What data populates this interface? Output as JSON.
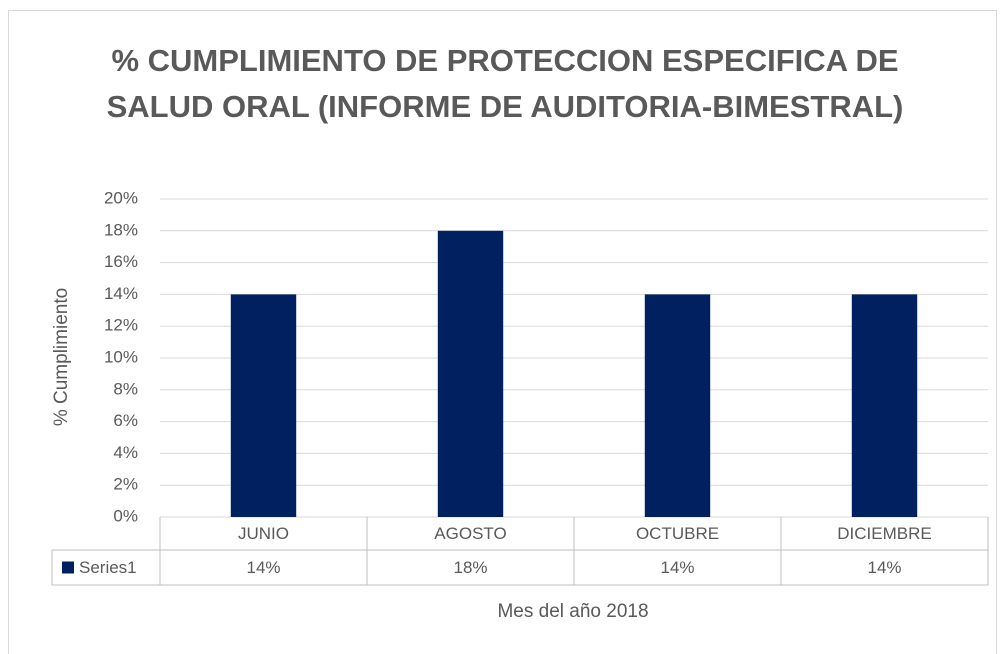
{
  "chart_data": {
    "type": "bar",
    "title": "% CUMPLIMIENTO DE PROTECCION ESPECIFICA DE SALUD ORAL (INFORME DE AUDITORIA-BIMESTRAL)",
    "x_label": "Mes del año 2018",
    "y_label": "% Cumplimiento",
    "categories": [
      "JUNIO",
      "AGOSTO",
      "OCTUBRE",
      "DICIEMBRE"
    ],
    "series": [
      {
        "name": "Series1",
        "color": "#002060",
        "values": [
          14,
          18,
          14,
          14
        ],
        "value_labels": [
          "14%",
          "18%",
          "14%",
          "14%"
        ]
      }
    ],
    "ylim": [
      0,
      20
    ],
    "yticks": [
      {
        "value": 0,
        "label": "0%"
      },
      {
        "value": 2,
        "label": "2%"
      },
      {
        "value": 4,
        "label": "4%"
      },
      {
        "value": 6,
        "label": "6%"
      },
      {
        "value": 8,
        "label": "8%"
      },
      {
        "value": 10,
        "label": "10%"
      },
      {
        "value": 12,
        "label": "12%"
      },
      {
        "value": 14,
        "label": "14%"
      },
      {
        "value": 16,
        "label": "16%"
      },
      {
        "value": 18,
        "label": "18%"
      },
      {
        "value": 20,
        "label": "20%"
      }
    ],
    "grid": true,
    "data_table": true
  }
}
